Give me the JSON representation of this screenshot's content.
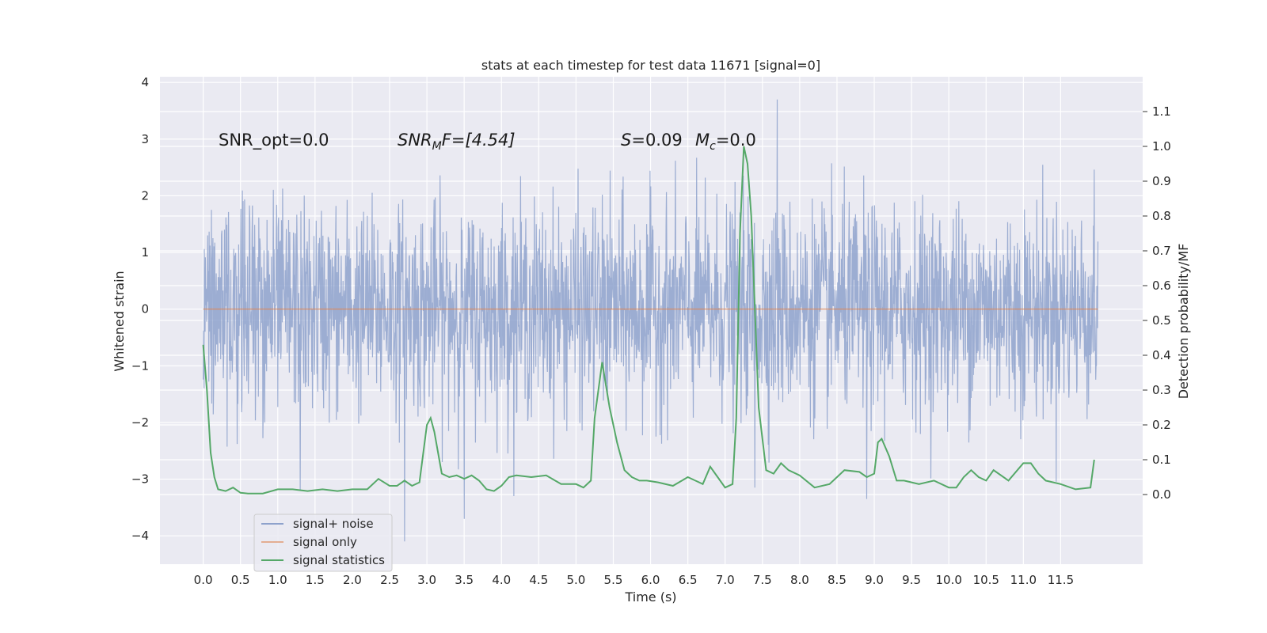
{
  "chart_data": {
    "type": "line",
    "title": "stats at each timestep for test data 11671 [signal=0]",
    "xlabel": "Time (s)",
    "ylabel_left": "Whitened strain",
    "ylabel_right": "Detection probability/MF",
    "xlim": [
      -0.58,
      12.6
    ],
    "ylim_left": [
      -4.5,
      4.1
    ],
    "ylim_right": [
      -0.2,
      1.2
    ],
    "xticks": [
      "0.0",
      "0.5",
      "1.0",
      "1.5",
      "2.0",
      "2.5",
      "3.0",
      "3.5",
      "4.0",
      "4.5",
      "5.0",
      "5.5",
      "6.0",
      "6.5",
      "7.0",
      "7.5",
      "8.0",
      "8.5",
      "9.0",
      "9.5",
      "10.0",
      "10.5",
      "11.0",
      "11.5"
    ],
    "yticks_left": [
      "4",
      "3",
      "2",
      "1",
      "0",
      "−1",
      "−2",
      "−3",
      "−4"
    ],
    "yticks_right": [
      "1.1",
      "1.0",
      "0.9",
      "0.8",
      "0.7",
      "0.6",
      "0.5",
      "0.4",
      "0.3",
      "0.2",
      "0.1",
      "0.0"
    ],
    "annotations": {
      "snr_opt": "SNR_opt=0.0",
      "snr_mf": "SNR",
      "snr_mf_sub": "M",
      "snr_mf_rest": "F=[4.54]",
      "s_val": "S",
      "s_rest": "=0.09",
      "mc": "M",
      "mc_sub": "c",
      "mc_rest": "=0.0"
    },
    "legend": {
      "position": "lower-left",
      "entries": [
        "signal+ noise",
        "signal only",
        "signal statistics"
      ]
    },
    "colors": {
      "noise": "#8ea2cc",
      "signal": "#dd8452",
      "stats": "#55a868",
      "background": "#eaeaf2",
      "grid": "#ffffff"
    },
    "series": [
      {
        "name": "signal+ noise",
        "description": "whitened strain noise samples, 0–12 s, typical amplitude ±1.2, peaks up to 3.7 and down to −4.1",
        "range": [
          -4.1,
          3.7
        ],
        "t_range": [
          0.0,
          12.0
        ],
        "spikes": [
          {
            "t": 7.7,
            "v": 3.7
          },
          {
            "t": 2.7,
            "v": -4.1
          },
          {
            "t": 3.5,
            "v": -3.7
          },
          {
            "t": 8.9,
            "v": -3.35
          },
          {
            "t": 1.3,
            "v": -3.2
          },
          {
            "t": 7.4,
            "v": -3.15
          }
        ]
      },
      {
        "name": "signal only",
        "description": "flat at zero",
        "x": [
          0.0,
          12.0
        ],
        "y": [
          0.0,
          0.0
        ]
      },
      {
        "name": "signal statistics",
        "x": [
          0.0,
          0.05,
          0.1,
          0.15,
          0.2,
          0.3,
          0.4,
          0.5,
          0.6,
          0.8,
          1.0,
          1.2,
          1.4,
          1.6,
          1.8,
          2.0,
          2.2,
          2.35,
          2.5,
          2.6,
          2.7,
          2.8,
          2.9,
          3.0,
          3.05,
          3.1,
          3.2,
          3.3,
          3.4,
          3.5,
          3.6,
          3.7,
          3.8,
          3.9,
          4.0,
          4.1,
          4.2,
          4.4,
          4.6,
          4.8,
          5.0,
          5.1,
          5.2,
          5.25,
          5.35,
          5.45,
          5.55,
          5.65,
          5.75,
          5.85,
          5.95,
          6.1,
          6.3,
          6.5,
          6.6,
          6.7,
          6.8,
          6.9,
          7.0,
          7.1,
          7.15,
          7.2,
          7.25,
          7.3,
          7.35,
          7.45,
          7.55,
          7.65,
          7.75,
          7.85,
          8.0,
          8.2,
          8.4,
          8.6,
          8.8,
          8.9,
          9.0,
          9.05,
          9.1,
          9.2,
          9.3,
          9.4,
          9.6,
          9.8,
          10.0,
          10.1,
          10.2,
          10.3,
          10.4,
          10.5,
          10.6,
          10.8,
          11.0,
          11.1,
          11.2,
          11.3,
          11.5,
          11.7,
          11.9,
          11.95
        ],
        "y": [
          0.43,
          0.3,
          0.12,
          0.05,
          0.015,
          0.01,
          0.02,
          0.005,
          0.003,
          0.003,
          0.015,
          0.015,
          0.01,
          0.015,
          0.01,
          0.015,
          0.015,
          0.045,
          0.025,
          0.025,
          0.04,
          0.025,
          0.035,
          0.2,
          0.22,
          0.18,
          0.06,
          0.05,
          0.055,
          0.045,
          0.055,
          0.04,
          0.015,
          0.01,
          0.025,
          0.05,
          0.055,
          0.05,
          0.055,
          0.03,
          0.03,
          0.02,
          0.04,
          0.22,
          0.38,
          0.25,
          0.15,
          0.07,
          0.05,
          0.04,
          0.04,
          0.035,
          0.025,
          0.05,
          0.04,
          0.03,
          0.08,
          0.05,
          0.02,
          0.03,
          0.22,
          0.75,
          1.0,
          0.95,
          0.8,
          0.25,
          0.07,
          0.06,
          0.09,
          0.07,
          0.055,
          0.02,
          0.03,
          0.07,
          0.065,
          0.05,
          0.06,
          0.15,
          0.16,
          0.11,
          0.04,
          0.04,
          0.03,
          0.04,
          0.02,
          0.02,
          0.05,
          0.07,
          0.05,
          0.04,
          0.07,
          0.04,
          0.09,
          0.09,
          0.06,
          0.04,
          0.03,
          0.015,
          0.02,
          0.1
        ]
      }
    ]
  }
}
